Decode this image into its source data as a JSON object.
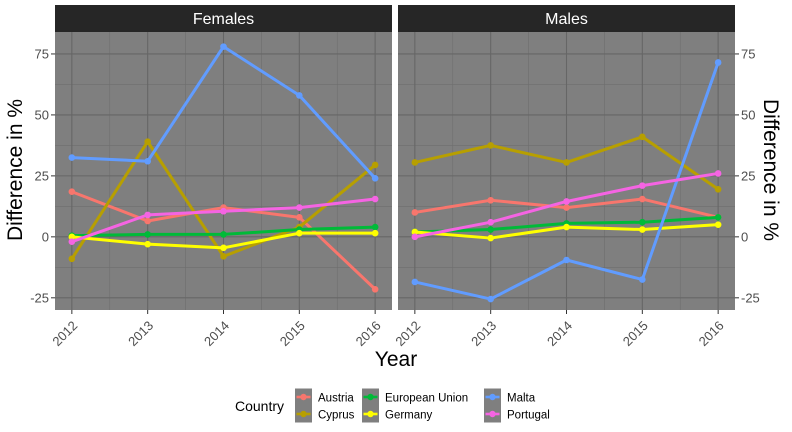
{
  "chart_data": {
    "type": "line",
    "panels": [
      {
        "title": "Females",
        "series": [
          {
            "name": "Austria",
            "values": [
              18.5,
              6.5,
              12.0,
              8.0,
              -21.5
            ]
          },
          {
            "name": "Cyprus",
            "values": [
              -9.0,
              39.0,
              -8.0,
              4.0,
              29.5
            ]
          },
          {
            "name": "European Union",
            "values": [
              0.5,
              1.0,
              1.0,
              3.0,
              4.0
            ]
          },
          {
            "name": "Germany",
            "values": [
              0.0,
              -3.0,
              -4.5,
              1.5,
              1.5
            ]
          },
          {
            "name": "Malta",
            "values": [
              32.5,
              31.0,
              78.0,
              58.0,
              24.0
            ]
          },
          {
            "name": "Portugal",
            "values": [
              -2.0,
              9.0,
              10.5,
              12.0,
              15.5
            ]
          }
        ]
      },
      {
        "title": "Males",
        "series": [
          {
            "name": "Austria",
            "values": [
              10.0,
              15.0,
              12.0,
              15.5,
              8.0
            ]
          },
          {
            "name": "Cyprus",
            "values": [
              30.5,
              37.5,
              30.5,
              41.0,
              19.5
            ]
          },
          {
            "name": "European Union",
            "values": [
              2.0,
              3.0,
              5.5,
              6.0,
              8.0
            ]
          },
          {
            "name": "Germany",
            "values": [
              2.0,
              -0.5,
              4.0,
              3.0,
              5.0
            ]
          },
          {
            "name": "Malta",
            "values": [
              -18.5,
              -25.5,
              -9.5,
              -17.5,
              71.5
            ]
          },
          {
            "name": "Portugal",
            "values": [
              0.0,
              6.0,
              14.5,
              21.0,
              26.0
            ]
          }
        ]
      }
    ],
    "x": [
      "2012",
      "2013",
      "2014",
      "2015",
      "2016"
    ],
    "xlabel": "Year",
    "ylabel": "Difference in %",
    "ylim": [
      -30,
      84
    ],
    "yticks": [
      -25,
      0,
      25,
      50,
      75
    ],
    "grid": true,
    "legend": {
      "title": "Country",
      "position": "bottom",
      "items": [
        "Austria",
        "Cyprus",
        "European Union",
        "Germany",
        "Malta",
        "Portugal"
      ]
    },
    "colors": {
      "Austria": "#F8766D",
      "Cyprus": "#B79F00",
      "European Union": "#00BA38",
      "Germany": "#FFFF00",
      "Malta": "#619CFF",
      "Portugal": "#F564E3"
    },
    "panel_background": "#7F7F7F",
    "strip_background": "#262626"
  }
}
